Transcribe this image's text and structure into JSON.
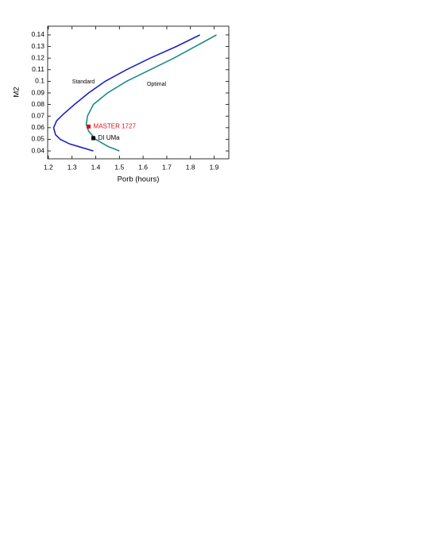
{
  "chart_data": {
    "type": "line",
    "xlabel": "Porb (hours)",
    "ylabel": "M2",
    "xlim": [
      1.197,
      1.962
    ],
    "ylim": [
      0.0332,
      0.1475
    ],
    "xticks": [
      1.2,
      1.3,
      1.4,
      1.5,
      1.6,
      1.7,
      1.8,
      1.9
    ],
    "yticks": [
      0.04,
      0.05,
      0.06,
      0.07,
      0.08,
      0.09,
      0.1,
      0.11,
      0.12,
      0.13,
      0.14
    ],
    "series": [
      {
        "name": "Standard",
        "color": "#1e1ec8",
        "x": [
          1.84,
          1.74,
          1.63,
          1.53,
          1.44,
          1.37,
          1.31,
          1.265,
          1.235,
          1.222,
          1.23,
          1.25,
          1.29,
          1.34,
          1.39
        ],
        "values": [
          0.14,
          0.13,
          0.12,
          0.11,
          0.1,
          0.09,
          0.08,
          0.072,
          0.066,
          0.06,
          0.054,
          0.05,
          0.046,
          0.043,
          0.04
        ]
      },
      {
        "name": "Optimal",
        "color": "#1a8a8a",
        "x": [
          1.91,
          1.82,
          1.73,
          1.63,
          1.53,
          1.45,
          1.39,
          1.365,
          1.36,
          1.37,
          1.4,
          1.45,
          1.5
        ],
        "values": [
          0.14,
          0.13,
          0.12,
          0.11,
          0.1,
          0.09,
          0.08,
          0.07,
          0.063,
          0.057,
          0.05,
          0.044,
          0.04
        ]
      }
    ],
    "points": [
      {
        "name": "MASTER 1727",
        "color": "#e01010",
        "x": 1.37,
        "value": 0.061
      },
      {
        "name": "DI UMa",
        "color": "#000000",
        "x": 1.39,
        "value": 0.051
      }
    ]
  }
}
